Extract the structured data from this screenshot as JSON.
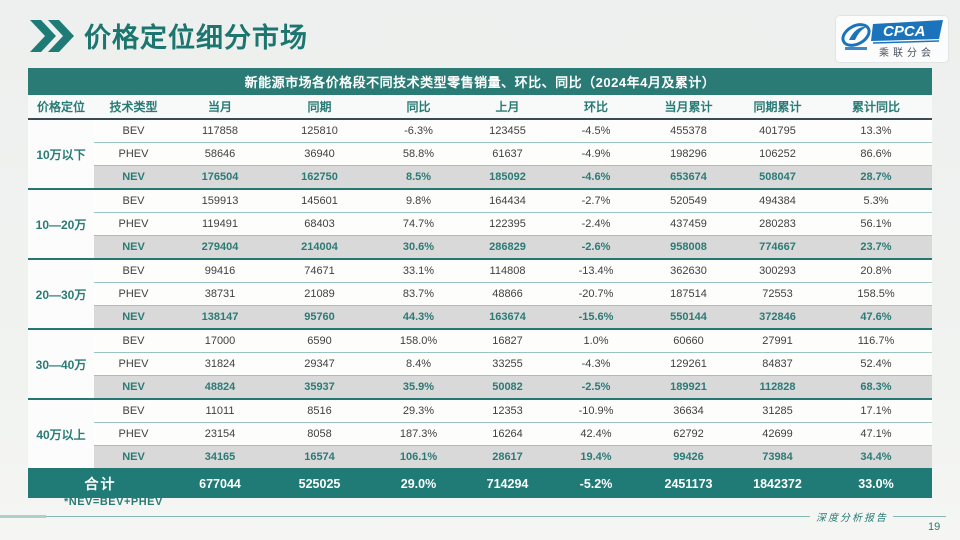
{
  "page": {
    "title": "价格定位细分市场",
    "footnote": "*NEV=BEV+PHEV",
    "footer_text": "深度分析报告",
    "page_number": "19"
  },
  "logo": {
    "acronym": "CPCA",
    "subtitle": "乘联分会"
  },
  "colors": {
    "accent_teal": "#2a7b76",
    "total_row_bg": "#207b76",
    "nev_row_bg": "#d9d9d9",
    "header_underline": "#3a4a52",
    "logo_blue": "#1b74bb"
  },
  "chart_data": {
    "type": "table",
    "title": "新能源市场各价格段不同技术类型零售销量、环比、同比（2024年4月及累计）",
    "headers": [
      "价格定位",
      "技术类型",
      "当月",
      "同期",
      "同比",
      "上月",
      "环比",
      "当月累计",
      "同期累计",
      "累计同比"
    ],
    "segments": [
      {
        "label": "10万以下",
        "rows": [
          [
            "BEV",
            "117858",
            "125810",
            "-6.3%",
            "123455",
            "-4.5%",
            "455378",
            "401795",
            "13.3%"
          ],
          [
            "PHEV",
            "58646",
            "36940",
            "58.8%",
            "61637",
            "-4.9%",
            "198296",
            "106252",
            "86.6%"
          ],
          [
            "NEV",
            "176504",
            "162750",
            "8.5%",
            "185092",
            "-4.6%",
            "653674",
            "508047",
            "28.7%"
          ]
        ]
      },
      {
        "label": "10—20万",
        "rows": [
          [
            "BEV",
            "159913",
            "145601",
            "9.8%",
            "164434",
            "-2.7%",
            "520549",
            "494384",
            "5.3%"
          ],
          [
            "PHEV",
            "119491",
            "68403",
            "74.7%",
            "122395",
            "-2.4%",
            "437459",
            "280283",
            "56.1%"
          ],
          [
            "NEV",
            "279404",
            "214004",
            "30.6%",
            "286829",
            "-2.6%",
            "958008",
            "774667",
            "23.7%"
          ]
        ]
      },
      {
        "label": "20—30万",
        "rows": [
          [
            "BEV",
            "99416",
            "74671",
            "33.1%",
            "114808",
            "-13.4%",
            "362630",
            "300293",
            "20.8%"
          ],
          [
            "PHEV",
            "38731",
            "21089",
            "83.7%",
            "48866",
            "-20.7%",
            "187514",
            "72553",
            "158.5%"
          ],
          [
            "NEV",
            "138147",
            "95760",
            "44.3%",
            "163674",
            "-15.6%",
            "550144",
            "372846",
            "47.6%"
          ]
        ]
      },
      {
        "label": "30—40万",
        "rows": [
          [
            "BEV",
            "17000",
            "6590",
            "158.0%",
            "16827",
            "1.0%",
            "60660",
            "27991",
            "116.7%"
          ],
          [
            "PHEV",
            "31824",
            "29347",
            "8.4%",
            "33255",
            "-4.3%",
            "129261",
            "84837",
            "52.4%"
          ],
          [
            "NEV",
            "48824",
            "35937",
            "35.9%",
            "50082",
            "-2.5%",
            "189921",
            "112828",
            "68.3%"
          ]
        ]
      },
      {
        "label": "40万以上",
        "rows": [
          [
            "BEV",
            "11011",
            "8516",
            "29.3%",
            "12353",
            "-10.9%",
            "36634",
            "31285",
            "17.1%"
          ],
          [
            "PHEV",
            "23154",
            "8058",
            "187.3%",
            "16264",
            "42.4%",
            "62792",
            "42699",
            "47.1%"
          ],
          [
            "NEV",
            "34165",
            "16574",
            "106.1%",
            "28617",
            "19.4%",
            "99426",
            "73984",
            "34.4%"
          ]
        ]
      }
    ],
    "total": {
      "label": "合计",
      "values": [
        "677044",
        "525025",
        "29.0%",
        "714294",
        "-5.2%",
        "2451173",
        "1842372",
        "33.0%"
      ]
    }
  }
}
